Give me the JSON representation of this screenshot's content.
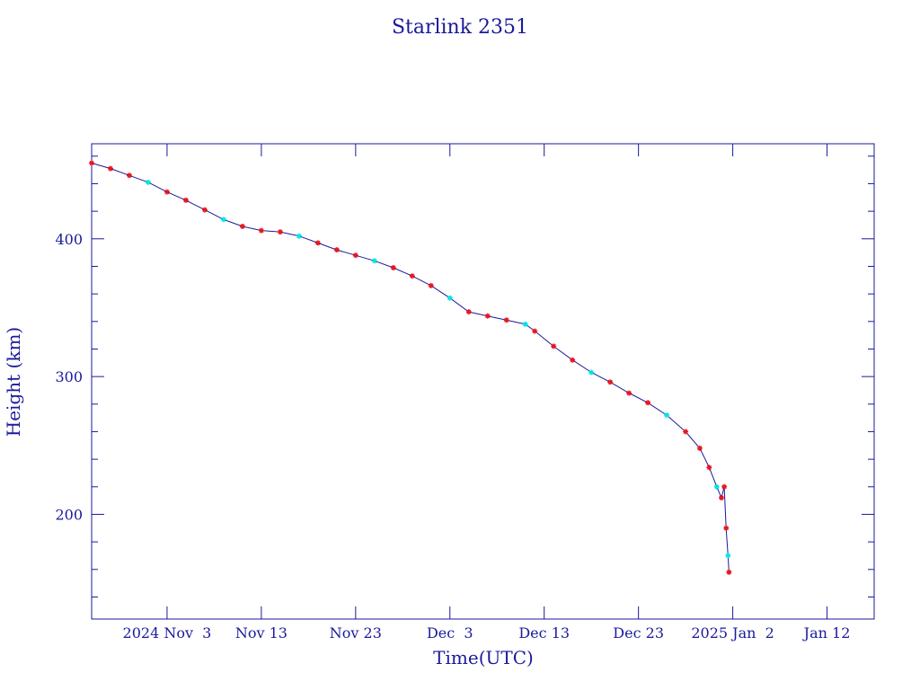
{
  "chart_data": {
    "type": "scatter",
    "title": "Starlink 2351",
    "xlabel": "Time(UTC)",
    "ylabel": "Height (km)",
    "x_scale": "time",
    "x_range": [
      "2024-10-26",
      "2025-01-17"
    ],
    "ylim": [
      124,
      469
    ],
    "yticks": [
      200,
      300,
      400
    ],
    "y_minor_step": 20,
    "xticks": [
      {
        "date": "2024-11-03",
        "label": "2024 Nov  3"
      },
      {
        "date": "2024-11-13",
        "label": "Nov 13"
      },
      {
        "date": "2024-11-23",
        "label": "Nov 23"
      },
      {
        "date": "2024-12-03",
        "label": "Dec  3"
      },
      {
        "date": "2024-12-13",
        "label": "Dec 13"
      },
      {
        "date": "2024-12-23",
        "label": "Dec 23"
      },
      {
        "date": "2025-01-02",
        "label": "2025 Jan  2"
      },
      {
        "date": "2025-01-12",
        "label": "Jan 12"
      }
    ],
    "line_color": "#1a1a9c",
    "axis_color": "#1a1a9c",
    "marker_colors": {
      "primary": "#e8141d",
      "secondary": "#00e5e5"
    },
    "markers": "asterisk",
    "series": [
      {
        "points": [
          [
            "2024-10-26",
            455
          ],
          [
            "2024-10-28",
            451
          ],
          [
            "2024-10-30",
            446
          ],
          [
            "2024-11-01",
            441
          ],
          [
            "2024-11-03",
            434
          ],
          [
            "2024-11-05",
            428
          ],
          [
            "2024-11-07",
            421
          ],
          [
            "2024-11-09",
            414
          ],
          [
            "2024-11-11",
            409
          ],
          [
            "2024-11-13",
            406
          ],
          [
            "2024-11-15",
            405
          ],
          [
            "2024-11-17",
            402
          ],
          [
            "2024-11-19",
            397
          ],
          [
            "2024-11-21",
            392
          ],
          [
            "2024-11-23",
            388
          ],
          [
            "2024-11-25",
            384
          ],
          [
            "2024-11-27",
            379
          ],
          [
            "2024-11-29",
            373
          ],
          [
            "2024-12-01",
            366
          ],
          [
            "2024-12-03",
            357
          ],
          [
            "2024-12-05",
            347
          ],
          [
            "2024-12-07",
            344
          ],
          [
            "2024-12-09",
            341
          ],
          [
            "2024-12-11",
            338
          ],
          [
            "2024-12-12",
            333
          ],
          [
            "2024-12-14",
            322
          ],
          [
            "2024-12-16",
            312
          ],
          [
            "2024-12-18",
            303
          ],
          [
            "2024-12-20",
            296
          ],
          [
            "2024-12-22",
            288
          ],
          [
            "2024-12-24",
            281
          ],
          [
            "2024-12-26",
            272
          ],
          [
            "2024-12-28",
            260
          ],
          [
            "2024-12-29.5",
            248
          ],
          [
            "2024-12-30.5",
            234
          ],
          [
            "2024-12-31.3",
            220
          ],
          [
            "2024-12-31.8",
            212
          ],
          [
            "2025-01-01.1",
            220
          ],
          [
            "2025-01-01.3",
            190
          ],
          [
            "2025-01-01.5",
            170
          ],
          [
            "2025-01-01.6",
            158
          ]
        ]
      }
    ]
  }
}
